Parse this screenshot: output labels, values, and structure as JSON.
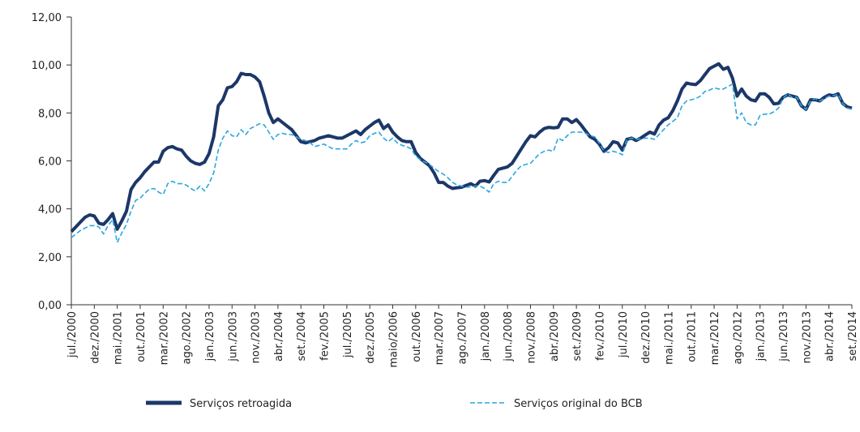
{
  "chart_data": {
    "type": "line",
    "categories": [
      "jul./2000",
      null,
      null,
      null,
      null,
      "dez./2000",
      null,
      null,
      null,
      null,
      "mai./2001",
      null,
      null,
      null,
      null,
      "out./2001",
      null,
      null,
      null,
      null,
      "mar./2002",
      null,
      null,
      null,
      null,
      "ago./2002",
      null,
      null,
      null,
      null,
      "jan./2003",
      null,
      null,
      null,
      null,
      "jun./2003",
      null,
      null,
      null,
      null,
      "nov./2003",
      null,
      null,
      null,
      null,
      "abr./2004",
      null,
      null,
      null,
      null,
      "set./2004",
      null,
      null,
      null,
      null,
      "fev./2005",
      null,
      null,
      null,
      null,
      "jul./2005",
      null,
      null,
      null,
      null,
      "dez./2005",
      null,
      null,
      null,
      null,
      "maio/2006",
      null,
      null,
      null,
      null,
      "out./2006",
      null,
      null,
      null,
      null,
      "mar./2007",
      null,
      null,
      null,
      null,
      "ago./2007",
      null,
      null,
      null,
      null,
      "jan./2008",
      null,
      null,
      null,
      null,
      "jun./2008",
      null,
      null,
      null,
      null,
      "nov./2008",
      null,
      null,
      null,
      null,
      "abr./2009",
      null,
      null,
      null,
      null,
      "set./2009",
      null,
      null,
      null,
      null,
      "fev./2010",
      null,
      null,
      null,
      null,
      "jul./2010",
      null,
      null,
      null,
      null,
      "dez./2010",
      null,
      null,
      null,
      null,
      "mai./2011",
      null,
      null,
      null,
      null,
      "out./2011",
      null,
      null,
      null,
      null,
      "mar./2012",
      null,
      null,
      null,
      null,
      "ago./2012",
      null,
      null,
      null,
      null,
      "jan./2013",
      null,
      null,
      null,
      null,
      "jun./2013",
      null,
      null,
      null,
      null,
      "nov./2013",
      null,
      null,
      null,
      null,
      "abr./2014",
      null,
      null,
      null,
      null,
      "set./2014"
    ],
    "series": [
      {
        "name": "Serviços retroagida",
        "color": "#1c3768",
        "dashed": false,
        "values": [
          3.05,
          3.25,
          3.45,
          3.65,
          3.75,
          3.7,
          3.4,
          3.35,
          3.55,
          3.8,
          3.15,
          3.5,
          3.9,
          4.8,
          5.1,
          5.3,
          5.55,
          5.75,
          5.95,
          5.95,
          6.4,
          6.55,
          6.6,
          6.5,
          6.45,
          6.2,
          6.0,
          5.9,
          5.85,
          5.95,
          6.3,
          7.0,
          8.3,
          8.55,
          9.05,
          9.1,
          9.3,
          9.65,
          9.6,
          9.6,
          9.5,
          9.3,
          8.7,
          8.0,
          7.6,
          7.75,
          7.6,
          7.45,
          7.3,
          7.05,
          6.8,
          6.75,
          6.8,
          6.85,
          6.95,
          7.0,
          7.05,
          7.0,
          6.95,
          6.95,
          7.05,
          7.15,
          7.25,
          7.1,
          7.3,
          7.45,
          7.6,
          7.7,
          7.35,
          7.5,
          7.2,
          7.0,
          6.85,
          6.8,
          6.8,
          6.35,
          6.1,
          5.95,
          5.8,
          5.5,
          5.1,
          5.1,
          4.95,
          4.85,
          4.88,
          4.9,
          4.98,
          5.05,
          4.95,
          5.15,
          5.18,
          5.12,
          5.4,
          5.65,
          5.7,
          5.75,
          5.9,
          6.2,
          6.5,
          6.8,
          7.05,
          7.0,
          7.2,
          7.35,
          7.4,
          7.38,
          7.4,
          7.75,
          7.75,
          7.6,
          7.72,
          7.5,
          7.25,
          7.0,
          6.9,
          6.7,
          6.4,
          6.55,
          6.8,
          6.75,
          6.45,
          6.9,
          6.95,
          6.85,
          6.95,
          7.08,
          7.2,
          7.12,
          7.5,
          7.7,
          7.8,
          8.1,
          8.5,
          9.0,
          9.25,
          9.2,
          9.18,
          9.35,
          9.6,
          9.85,
          9.95,
          10.05,
          9.82,
          9.9,
          9.45,
          8.7,
          9.0,
          8.7,
          8.55,
          8.5,
          8.8,
          8.8,
          8.65,
          8.38,
          8.4,
          8.65,
          8.75,
          8.7,
          8.65,
          8.3,
          8.15,
          8.55,
          8.55,
          8.5,
          8.65,
          8.75,
          8.72,
          8.8,
          8.4,
          8.25,
          8.2
        ]
      },
      {
        "name": "Serviços original do BCB",
        "color": "#2aa7df",
        "dashed": true,
        "values": [
          2.8,
          2.95,
          3.1,
          3.2,
          3.3,
          3.3,
          3.25,
          2.95,
          3.3,
          3.55,
          2.6,
          3.0,
          3.35,
          3.9,
          4.35,
          4.45,
          4.65,
          4.82,
          4.85,
          4.7,
          4.6,
          5.05,
          5.15,
          5.05,
          5.05,
          5.0,
          4.85,
          4.75,
          4.95,
          4.75,
          5.05,
          5.5,
          6.45,
          6.95,
          7.25,
          7.05,
          7.0,
          7.3,
          7.1,
          7.35,
          7.45,
          7.55,
          7.5,
          7.2,
          6.9,
          7.1,
          7.15,
          7.1,
          7.1,
          7.0,
          6.9,
          6.85,
          6.75,
          6.6,
          6.65,
          6.7,
          6.6,
          6.5,
          6.5,
          6.5,
          6.5,
          6.7,
          6.85,
          6.75,
          6.8,
          7.05,
          7.15,
          7.2,
          6.95,
          6.8,
          6.95,
          6.75,
          6.65,
          6.6,
          6.5,
          6.2,
          6.05,
          5.95,
          5.85,
          5.7,
          5.55,
          5.45,
          5.3,
          5.1,
          5.0,
          4.95,
          4.9,
          4.92,
          4.95,
          4.95,
          4.85,
          4.7,
          5.05,
          5.15,
          5.1,
          5.1,
          5.35,
          5.6,
          5.8,
          5.85,
          5.9,
          6.1,
          6.3,
          6.4,
          6.45,
          6.4,
          6.95,
          6.85,
          7.05,
          7.2,
          7.2,
          7.2,
          7.15,
          7.05,
          7.0,
          6.75,
          6.4,
          6.35,
          6.4,
          6.35,
          6.25,
          6.9,
          6.95,
          6.9,
          6.92,
          6.95,
          6.95,
          6.9,
          7.1,
          7.3,
          7.5,
          7.65,
          7.8,
          8.3,
          8.5,
          8.55,
          8.6,
          8.7,
          8.9,
          8.95,
          9.05,
          9.0,
          9.0,
          9.1,
          9.2,
          7.75,
          8.0,
          7.6,
          7.5,
          7.5,
          7.9,
          7.95,
          7.95,
          8.05,
          8.2,
          8.6,
          8.8,
          8.65,
          8.65,
          8.3,
          8.15,
          8.5,
          8.6,
          8.5,
          8.6,
          8.7,
          8.72,
          8.78,
          8.4,
          8.2,
          8.15
        ]
      }
    ],
    "ylim": [
      0,
      12
    ],
    "yticks": [
      {
        "value": 0,
        "label": "0,00"
      },
      {
        "value": 2,
        "label": "2,00"
      },
      {
        "value": 4,
        "label": "4,00"
      },
      {
        "value": 6,
        "label": "6,00"
      },
      {
        "value": 8,
        "label": "8,00"
      },
      {
        "value": 10,
        "label": "10,00"
      },
      {
        "value": 12,
        "label": "12,00"
      }
    ],
    "grid": false,
    "legend": "bottom"
  }
}
